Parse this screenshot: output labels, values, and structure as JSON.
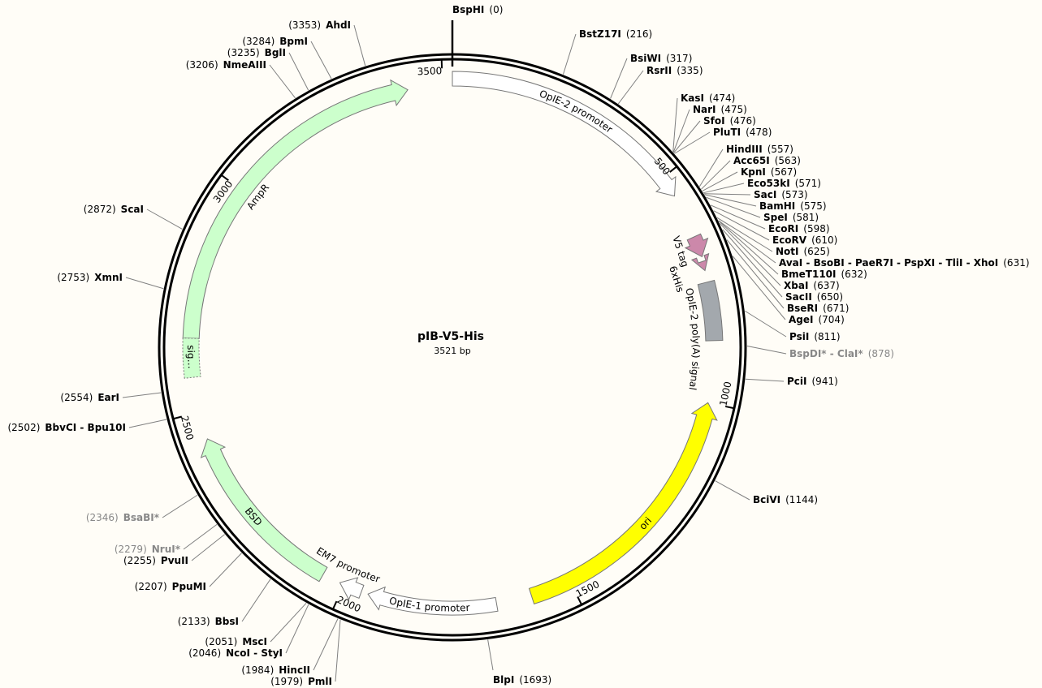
{
  "plasmid": {
    "name": "pIB-V5-His",
    "length": 3521,
    "length_label": "3521 bp"
  },
  "ticks": [
    500,
    1000,
    1500,
    2000,
    2500,
    3000,
    3500
  ],
  "features": [
    {
      "label": "OpIE-2 promoter",
      "color": "#ffffff"
    },
    {
      "label": "V5 tag",
      "color": "#cc88aa"
    },
    {
      "label": "6xHis",
      "color": "#cc88aa"
    },
    {
      "label": "OpIE-2 poly(A) signal",
      "color": "#a3a8ad"
    },
    {
      "label": "ori",
      "color": "#ffff00"
    },
    {
      "label": "OpIE-1 promoter",
      "color": "#ffffff"
    },
    {
      "label": "EM7 promoter",
      "color": "#ffffff"
    },
    {
      "label": "BSD",
      "color": "#ccffcc"
    },
    {
      "label": "AmpR",
      "color": "#ccffcc"
    },
    {
      "label": "sig…",
      "color": "#ccffcc"
    }
  ],
  "enzymes": [
    {
      "name": "BspHI",
      "position": 0,
      "position_label": "(0)"
    },
    {
      "name": "BstZ17I",
      "position": 216,
      "position_label": "(216)"
    },
    {
      "name": "BsiWI",
      "position": 317,
      "position_label": "(317)"
    },
    {
      "name": "RsrII",
      "position": 335,
      "position_label": "(335)"
    },
    {
      "name": "KasI",
      "position": 474,
      "position_label": "(474)"
    },
    {
      "name": "NarI",
      "position": 475,
      "position_label": "(475)"
    },
    {
      "name": "SfoI",
      "position": 476,
      "position_label": "(476)"
    },
    {
      "name": "PluTI",
      "position": 478,
      "position_label": "(478)"
    },
    {
      "name": "HindIII",
      "position": 557,
      "position_label": "(557)"
    },
    {
      "name": "Acc65I",
      "position": 563,
      "position_label": "(563)"
    },
    {
      "name": "KpnI",
      "position": 567,
      "position_label": "(567)"
    },
    {
      "name": "Eco53kI",
      "position": 571,
      "position_label": "(571)"
    },
    {
      "name": "SacI",
      "position": 573,
      "position_label": "(573)"
    },
    {
      "name": "BamHI",
      "position": 575,
      "position_label": "(575)"
    },
    {
      "name": "SpeI",
      "position": 581,
      "position_label": "(581)"
    },
    {
      "name": "EcoRI",
      "position": 598,
      "position_label": "(598)"
    },
    {
      "name": "EcoRV",
      "position": 610,
      "position_label": "(610)"
    },
    {
      "name": "NotI",
      "position": 625,
      "position_label": "(625)"
    },
    {
      "name": "AvaI - BsoBI - PaeR7I - PspXI - TliI - XhoI",
      "position": 631,
      "position_label": "(631)"
    },
    {
      "name": "BmeT110I",
      "position": 632,
      "position_label": "(632)"
    },
    {
      "name": "XbaI",
      "position": 637,
      "position_label": "(637)"
    },
    {
      "name": "SacII",
      "position": 650,
      "position_label": "(650)"
    },
    {
      "name": "BseRI",
      "position": 671,
      "position_label": "(671)"
    },
    {
      "name": "AgeI",
      "position": 704,
      "position_label": "(704)"
    },
    {
      "name": "PsiI",
      "position": 811,
      "position_label": "(811)"
    },
    {
      "name": "BspDI* - ClaI*",
      "position": 878,
      "position_label": "(878)",
      "color": "#888888"
    },
    {
      "name": "PciI",
      "position": 941,
      "position_label": "(941)"
    },
    {
      "name": "BciVI",
      "position": 1144,
      "position_label": "(1144)"
    },
    {
      "name": "BlpI",
      "position": 1693,
      "position_label": "(1693)"
    },
    {
      "name": "PmlI",
      "position": 1979,
      "position_label": "(1979)"
    },
    {
      "name": "HincII",
      "position": 1984,
      "position_label": "(1984)"
    },
    {
      "name": "NcoI - StyI",
      "position": 2046,
      "position_label": "(2046)"
    },
    {
      "name": "MscI",
      "position": 2051,
      "position_label": "(2051)"
    },
    {
      "name": "BbsI",
      "position": 2133,
      "position_label": "(2133)"
    },
    {
      "name": "PpuMI",
      "position": 2207,
      "position_label": "(2207)"
    },
    {
      "name": "PvuII",
      "position": 2255,
      "position_label": "(2255)"
    },
    {
      "name": "NruI*",
      "position": 2279,
      "position_label": "(2279)",
      "color": "#888888"
    },
    {
      "name": "BsaBI*",
      "position": 2346,
      "position_label": "(2346)",
      "color": "#888888"
    },
    {
      "name": "BbvCI - Bpu10I",
      "position": 2502,
      "position_label": "(2502)"
    },
    {
      "name": "EarI",
      "position": 2554,
      "position_label": "(2554)"
    },
    {
      "name": "XmnI",
      "position": 2753,
      "position_label": "(2753)"
    },
    {
      "name": "ScaI",
      "position": 2872,
      "position_label": "(2872)"
    },
    {
      "name": "NmeAIII",
      "position": 3206,
      "position_label": "(3206)"
    },
    {
      "name": "BglI",
      "position": 3235,
      "position_label": "(3235)"
    },
    {
      "name": "BpmI",
      "position": 3284,
      "position_label": "(3284)"
    },
    {
      "name": "AhdI",
      "position": 3353,
      "position_label": "(3353)"
    }
  ]
}
